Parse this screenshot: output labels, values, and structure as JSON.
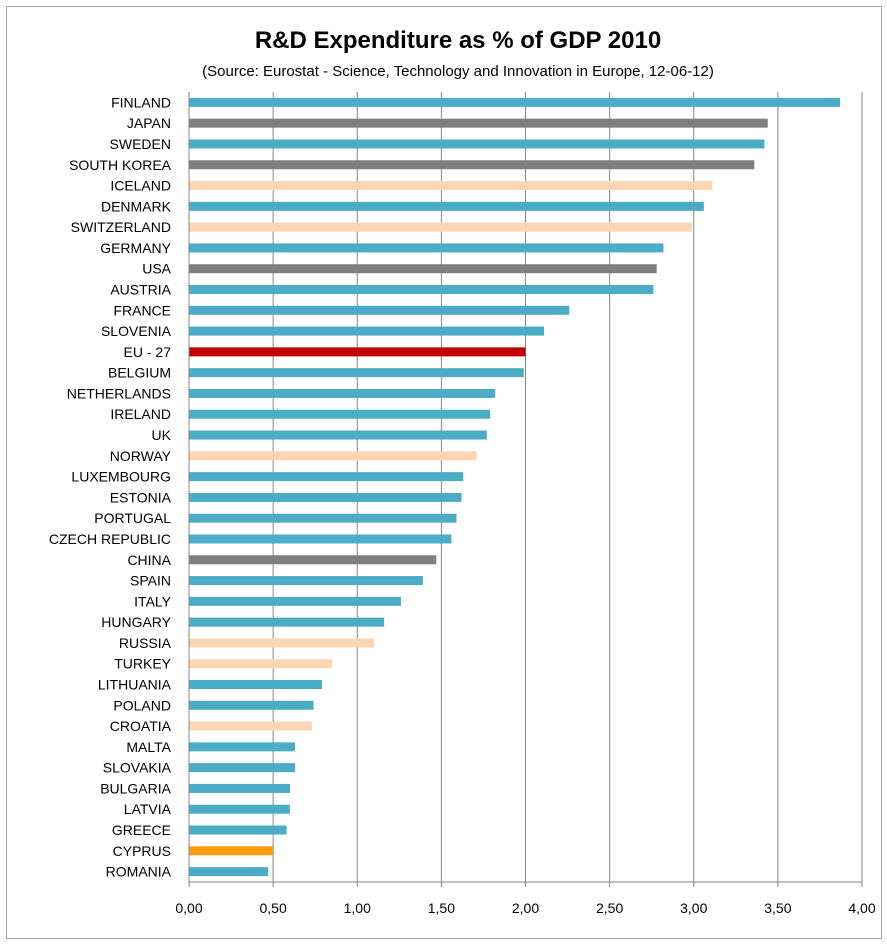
{
  "chart_data": {
    "type": "bar",
    "orientation": "horizontal",
    "title": "R&D Expenditure as % of GDP 2010",
    "subtitle": "(Source: Eurostat - Science, Technology and Innovation in Europe, 12-06-12)",
    "xlim": [
      0,
      4
    ],
    "x_ticks": [
      "0,00",
      "0,50",
      "1,00",
      "1,50",
      "2,00",
      "2,50",
      "3,00",
      "3,50",
      "4,00"
    ],
    "grid": "vertical",
    "categories": [
      "FINLAND",
      "JAPAN",
      "SWEDEN",
      "SOUTH KOREA",
      "ICELAND",
      "DENMARK",
      "SWITZERLAND",
      "GERMANY",
      "USA",
      "AUSTRIA",
      "FRANCE",
      "SLOVENIA",
      "EU - 27",
      "BELGIUM",
      "NETHERLANDS",
      "IRELAND",
      "UK",
      "NORWAY",
      "LUXEMBOURG",
      "ESTONIA",
      "PORTUGAL",
      "CZECH REPUBLIC",
      "CHINA",
      "SPAIN",
      "ITALY",
      "HUNGARY",
      "RUSSIA",
      "TURKEY",
      "LITHUANIA",
      "POLAND",
      "CROATIA",
      "MALTA",
      "SLOVAKIA",
      "BULGARIA",
      "LATVIA",
      "GREECE",
      "CYPRUS",
      "ROMANIA"
    ],
    "values": [
      3.87,
      3.44,
      3.42,
      3.36,
      3.11,
      3.06,
      2.99,
      2.82,
      2.78,
      2.76,
      2.26,
      2.11,
      2.0,
      1.99,
      1.82,
      1.79,
      1.77,
      1.71,
      1.63,
      1.62,
      1.59,
      1.56,
      1.47,
      1.39,
      1.26,
      1.16,
      1.1,
      0.85,
      0.79,
      0.74,
      0.73,
      0.63,
      0.63,
      0.6,
      0.6,
      0.58,
      0.5,
      0.47
    ],
    "bar_colors": [
      "#4bacc6",
      "#7f7f7f",
      "#4bacc6",
      "#7f7f7f",
      "#fcd5b5",
      "#4bacc6",
      "#fcd5b5",
      "#4bacc6",
      "#7f7f7f",
      "#4bacc6",
      "#4bacc6",
      "#4bacc6",
      "#c00000",
      "#4bacc6",
      "#4bacc6",
      "#4bacc6",
      "#4bacc6",
      "#fcd5b5",
      "#4bacc6",
      "#4bacc6",
      "#4bacc6",
      "#4bacc6",
      "#7f7f7f",
      "#4bacc6",
      "#4bacc6",
      "#4bacc6",
      "#fcd5b5",
      "#fcd5b5",
      "#4bacc6",
      "#4bacc6",
      "#fcd5b5",
      "#4bacc6",
      "#4bacc6",
      "#4bacc6",
      "#4bacc6",
      "#4bacc6",
      "#f79b10",
      "#4bacc6"
    ]
  }
}
